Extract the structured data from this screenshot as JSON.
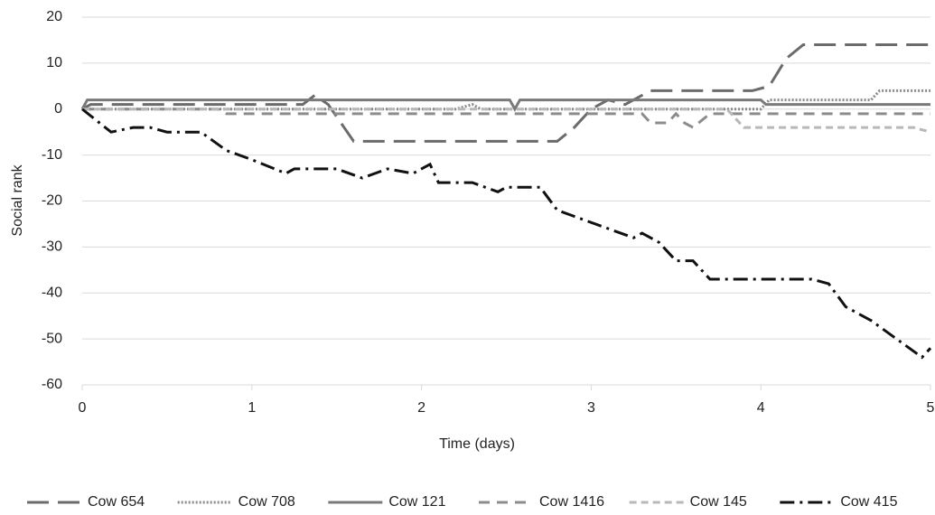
{
  "chart_data": {
    "type": "line",
    "xlabel": "Time (days)",
    "ylabel": "Social rank",
    "xlim": [
      0,
      5
    ],
    "xticks": [
      0,
      1,
      2,
      3,
      4,
      5
    ],
    "ylim": [
      -60,
      20
    ],
    "yticks": [
      -60,
      -50,
      -40,
      -30,
      -20,
      -10,
      0,
      10,
      20
    ],
    "grid": true,
    "legend": "bottom",
    "series": [
      {
        "name": "Cow 654",
        "color": "#6b6b6b",
        "dash": "24,10",
        "x": [
          0,
          0.05,
          1.3,
          1.37,
          1.45,
          1.6,
          2.8,
          2.9,
          3.0,
          3.1,
          3.2,
          3.35,
          3.95,
          4.05,
          4.15,
          4.25,
          5
        ],
        "values": [
          0,
          1,
          1,
          3,
          1,
          -7,
          -7,
          -4,
          0,
          2,
          1,
          4,
          4,
          5,
          11,
          14,
          14
        ]
      },
      {
        "name": "Cow 708",
        "color": "#8a8a8a",
        "dash": "2,2",
        "x": [
          0,
          2.2,
          2.3,
          2.35,
          4.0,
          4.05,
          4.65,
          4.7,
          5
        ],
        "values": [
          0,
          0,
          1,
          0,
          0,
          2,
          2,
          4,
          4
        ]
      },
      {
        "name": "Cow 121",
        "color": "#7a7a7a",
        "dash": "",
        "x": [
          0,
          0.03,
          2.52,
          2.55,
          2.58,
          4.0,
          4.03,
          5
        ],
        "values": [
          0,
          2,
          2,
          0,
          2,
          2,
          1,
          1
        ]
      },
      {
        "name": "Cow 1416",
        "color": "#8c8c8c",
        "dash": "12,8",
        "x": [
          0,
          0.8,
          0.85,
          3.3,
          3.35,
          3.45,
          3.5,
          3.55,
          3.6,
          3.7,
          5
        ],
        "values": [
          0,
          0,
          -1,
          -1,
          -3,
          -3,
          -1,
          -3,
          -4,
          -1,
          -1
        ]
      },
      {
        "name": "Cow 145",
        "color": "#b8b8b8",
        "dash": "8,5",
        "x": [
          0,
          3.8,
          3.9,
          4.9,
          5
        ],
        "values": [
          0,
          0,
          -4,
          -4,
          -5
        ]
      },
      {
        "name": "Cow 415",
        "color": "#111111",
        "dash": "16,6,3,6",
        "x": [
          0,
          0.17,
          0.3,
          0.4,
          0.5,
          0.7,
          0.85,
          1.0,
          1.2,
          1.25,
          1.5,
          1.65,
          1.8,
          1.95,
          2.05,
          2.1,
          2.3,
          2.45,
          2.5,
          2.7,
          2.8,
          2.95,
          3.1,
          3.25,
          3.3,
          3.4,
          3.5,
          3.6,
          3.7,
          4.3,
          4.4,
          4.5,
          4.65,
          4.8,
          4.95,
          5
        ],
        "values": [
          0,
          -5,
          -4,
          -4,
          -5,
          -5,
          -9,
          -11,
          -14,
          -13,
          -13,
          -15,
          -13,
          -14,
          -12,
          -16,
          -16,
          -18,
          -17,
          -17,
          -22,
          -24,
          -26,
          -28,
          -27,
          -29,
          -33,
          -33,
          -37,
          -37,
          -38,
          -43,
          -46,
          -50,
          -54,
          -52
        ]
      }
    ]
  }
}
